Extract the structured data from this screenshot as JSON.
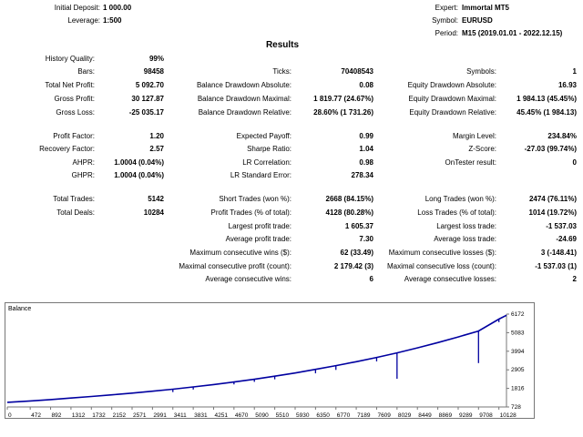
{
  "header": {
    "initial_deposit_label": "Initial Deposit:",
    "initial_deposit_value": "1 000.00",
    "leverage_label": "Leverage:",
    "leverage_value": "1:500",
    "expert_label": "Expert:",
    "expert_value": "Immortal MT5",
    "symbol_label": "Symbol:",
    "symbol_value": "EURUSD",
    "period_label": "Period:",
    "period_value": "M15 (2019.01.01 - 2022.12.15)"
  },
  "results_title": "Results",
  "stats": {
    "history_quality": {
      "label": "History Quality:",
      "value": "99%"
    },
    "bars": {
      "label": "Bars:",
      "value": "98458"
    },
    "ticks": {
      "label": "Ticks:",
      "value": "70408543"
    },
    "symbols": {
      "label": "Symbols:",
      "value": "1"
    },
    "total_net_profit": {
      "label": "Total Net Profit:",
      "value": "5 092.70"
    },
    "balance_dd_abs": {
      "label": "Balance Drawdown Absolute:",
      "value": "0.08"
    },
    "equity_dd_abs": {
      "label": "Equity Drawdown Absolute:",
      "value": "16.93"
    },
    "gross_profit": {
      "label": "Gross Profit:",
      "value": "30 127.87"
    },
    "balance_dd_max": {
      "label": "Balance Drawdown Maximal:",
      "value": "1 819.77 (24.67%)"
    },
    "equity_dd_max": {
      "label": "Equity Drawdown Maximal:",
      "value": "1 984.13 (45.45%)"
    },
    "gross_loss": {
      "label": "Gross Loss:",
      "value": "-25 035.17"
    },
    "balance_dd_rel": {
      "label": "Balance Drawdown Relative:",
      "value": "28.60% (1 731.26)"
    },
    "equity_dd_rel": {
      "label": "Equity Drawdown Relative:",
      "value": "45.45% (1 984.13)"
    },
    "profit_factor": {
      "label": "Profit Factor:",
      "value": "1.20"
    },
    "expected_payoff": {
      "label": "Expected Payoff:",
      "value": "0.99"
    },
    "margin_level": {
      "label": "Margin Level:",
      "value": "234.84%"
    },
    "recovery_factor": {
      "label": "Recovery Factor:",
      "value": "2.57"
    },
    "sharpe_ratio": {
      "label": "Sharpe Ratio:",
      "value": "1.04"
    },
    "z_score": {
      "label": "Z-Score:",
      "value": "-27.03 (99.74%)"
    },
    "ahpr": {
      "label": "AHPR:",
      "value": "1.0004 (0.04%)"
    },
    "lr_correlation": {
      "label": "LR Correlation:",
      "value": "0.98"
    },
    "ontester": {
      "label": "OnTester result:",
      "value": "0"
    },
    "ghpr": {
      "label": "GHPR:",
      "value": "1.0004 (0.04%)"
    },
    "lr_std_error": {
      "label": "LR Standard Error:",
      "value": "278.34"
    },
    "total_trades": {
      "label": "Total Trades:",
      "value": "5142"
    },
    "short_trades": {
      "label": "Short Trades (won %):",
      "value": "2668 (84.15%)"
    },
    "long_trades": {
      "label": "Long Trades (won %):",
      "value": "2474 (76.11%)"
    },
    "total_deals": {
      "label": "Total Deals:",
      "value": "10284"
    },
    "profit_trades": {
      "label": "Profit Trades (% of total):",
      "value": "4128 (80.28%)"
    },
    "loss_trades": {
      "label": "Loss Trades (% of total):",
      "value": "1014 (19.72%)"
    },
    "largest_profit": {
      "label": "Largest profit trade:",
      "value": "1 605.37"
    },
    "largest_loss": {
      "label": "Largest loss trade:",
      "value": "-1 537.03"
    },
    "avg_profit": {
      "label": "Average profit trade:",
      "value": "7.30"
    },
    "avg_loss": {
      "label": "Average loss trade:",
      "value": "-24.69"
    },
    "max_consec_wins": {
      "label": "Maximum consecutive wins ($):",
      "value": "62 (33.49)"
    },
    "max_consec_losses": {
      "label": "Maximum consecutive losses ($):",
      "value": "3 (-148.41)"
    },
    "maximal_consec_profit": {
      "label": "Maximal consecutive profit (count):",
      "value": "2 179.42 (3)"
    },
    "maximal_consec_loss": {
      "label": "Maximal consecutive loss (count):",
      "value": "-1 537.03 (1)"
    },
    "avg_consec_wins": {
      "label": "Average consecutive wins:",
      "value": "6"
    },
    "avg_consec_losses": {
      "label": "Average consecutive losses:",
      "value": "2"
    }
  },
  "colors": {
    "line": "#0000a0",
    "axis": "#777777"
  },
  "chart_data": {
    "type": "line",
    "title": "Balance",
    "xlabel": "",
    "ylabel": "",
    "x_ticks": [
      0,
      472,
      892,
      1312,
      1732,
      2152,
      2571,
      2991,
      3411,
      3831,
      4251,
      4670,
      5090,
      5510,
      5930,
      6350,
      6770,
      7189,
      7609,
      8029,
      8449,
      8869,
      9289,
      9708,
      10128
    ],
    "y_ticks": [
      728,
      1816,
      2905,
      3994,
      5083,
      6172
    ],
    "xlim": [
      0,
      10284
    ],
    "ylim": [
      728,
      6172
    ],
    "grid": false,
    "series": [
      {
        "values_x": [
          0,
          472,
          892,
          1312,
          1732,
          2152,
          2571,
          2991,
          3411,
          3831,
          4251,
          4670,
          5090,
          5510,
          5930,
          6350,
          6770,
          7189,
          7609,
          8029,
          8449,
          8869,
          9289,
          9708,
          10128,
          10284
        ],
        "values": [
          1000,
          1080,
          1160,
          1250,
          1340,
          1440,
          1540,
          1650,
          1770,
          1900,
          2040,
          2190,
          2350,
          2530,
          2720,
          2930,
          3150,
          3380,
          3630,
          3900,
          4190,
          4500,
          4830,
          5180,
          5880,
          6100
        ]
      }
    ],
    "drawdown_spikes": [
      {
        "x": 3411,
        "low": 1600
      },
      {
        "x": 3831,
        "low": 1750
      },
      {
        "x": 4670,
        "low": 2050
      },
      {
        "x": 5090,
        "low": 2200
      },
      {
        "x": 5510,
        "low": 2350
      },
      {
        "x": 6350,
        "low": 2700
      },
      {
        "x": 6770,
        "low": 2900
      },
      {
        "x": 7609,
        "low": 3400
      },
      {
        "x": 8029,
        "low": 2380
      },
      {
        "x": 9708,
        "low": 3300
      },
      {
        "x": 10128,
        "low": 5700
      }
    ]
  }
}
